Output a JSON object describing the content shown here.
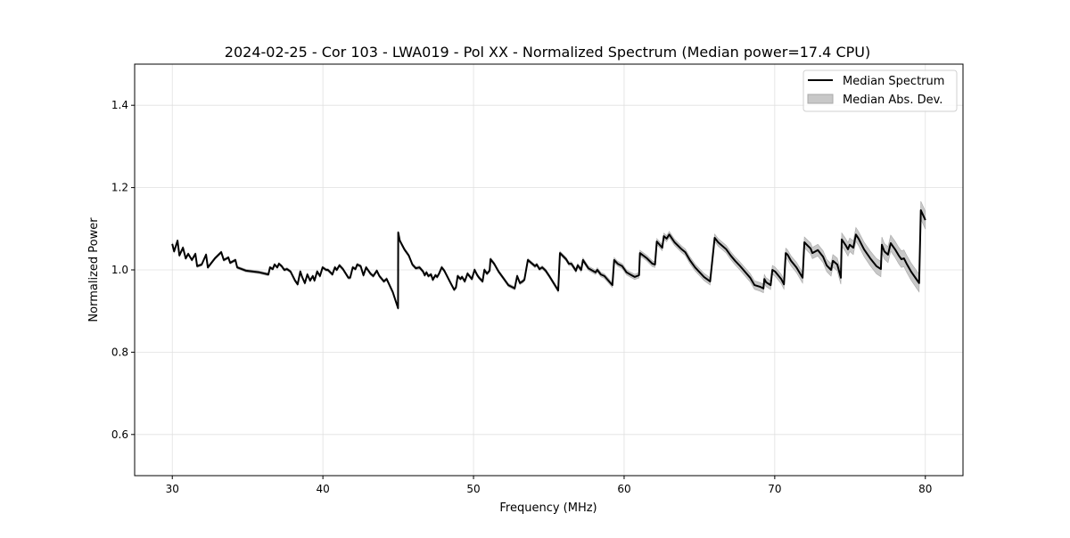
{
  "chart_data": {
    "type": "line",
    "title": "2024-02-25 - Cor 103 - LWA019 - Pol XX - Normalized Spectrum (Median power=17.4 CPU)",
    "xlabel": "Frequency (MHz)",
    "ylabel": "Normalized Power",
    "xlim": [
      27.5,
      82.5
    ],
    "ylim": [
      0.5,
      1.5
    ],
    "xticks": [
      30,
      40,
      50,
      60,
      70,
      80
    ],
    "yticks": [
      0.6,
      0.8,
      1.0,
      1.2,
      1.4
    ],
    "xtick_labels": [
      "30",
      "40",
      "50",
      "60",
      "70",
      "80"
    ],
    "ytick_labels": [
      "0.6",
      "0.8",
      "1.0",
      "1.2",
      "1.4"
    ],
    "grid": true,
    "legend_position": "top-right",
    "legend": [
      "Median Spectrum",
      "Median Abs. Dev."
    ],
    "colors": {
      "line": "#000000",
      "band": "#c8c8c8",
      "band_edge": "#a8a8a8",
      "grid": "#e0e0e0"
    },
    "mad_profile": [
      [
        30,
        0.003
      ],
      [
        55,
        0.004
      ],
      [
        62,
        0.007
      ],
      [
        70,
        0.011
      ],
      [
        80,
        0.022
      ]
    ],
    "series": [
      {
        "name": "Median Spectrum",
        "x": [
          30.0,
          30.12,
          30.35,
          30.47,
          30.71,
          30.89,
          31.06,
          31.3,
          31.53,
          31.65,
          31.95,
          32.24,
          32.36,
          32.83,
          33.25,
          33.42,
          33.72,
          33.84,
          34.19,
          34.31,
          34.9,
          35.79,
          36.38,
          36.49,
          36.67,
          36.79,
          36.97,
          37.08,
          37.26,
          37.44,
          37.61,
          37.85,
          38.15,
          38.32,
          38.5,
          38.62,
          38.8,
          38.97,
          39.15,
          39.33,
          39.44,
          39.62,
          39.8,
          39.98,
          40.21,
          40.33,
          40.63,
          40.8,
          40.92,
          41.1,
          41.33,
          41.69,
          41.81,
          41.98,
          42.16,
          42.28,
          42.51,
          42.69,
          42.87,
          43.16,
          43.34,
          43.58,
          43.75,
          44.05,
          44.23,
          44.64,
          44.99,
          45.0,
          45.11,
          45.41,
          45.7,
          45.94,
          46.17,
          46.41,
          46.65,
          46.76,
          46.88,
          47.0,
          47.18,
          47.3,
          47.47,
          47.59,
          47.71,
          47.89,
          48.06,
          48.48,
          48.71,
          48.83,
          48.95,
          49.13,
          49.24,
          49.42,
          49.6,
          49.78,
          49.89,
          50.07,
          50.25,
          50.37,
          50.6,
          50.72,
          50.9,
          51.07,
          51.13,
          51.37,
          51.66,
          52.02,
          52.31,
          52.73,
          52.9,
          53.08,
          53.26,
          53.38,
          53.61,
          54.08,
          54.2,
          54.38,
          54.56,
          54.79,
          55.03,
          55.62,
          55.74,
          56.15,
          56.33,
          56.5,
          56.8,
          56.92,
          57.15,
          57.27,
          57.63,
          58.1,
          58.22,
          58.45,
          58.69,
          59.22,
          59.34,
          59.57,
          59.87,
          60.16,
          60.4,
          60.7,
          60.99,
          61.05,
          61.52,
          61.88,
          62.05,
          62.17,
          62.53,
          62.64,
          62.82,
          63.0,
          63.35,
          63.82,
          64.06,
          64.36,
          64.71,
          65.3,
          65.71,
          66.01,
          66.24,
          66.78,
          67.07,
          67.37,
          67.66,
          68.37,
          68.66,
          69.02,
          69.25,
          69.31,
          69.43,
          69.73,
          69.84,
          70.02,
          70.43,
          70.61,
          70.73,
          70.85,
          71.08,
          71.44,
          71.85,
          71.97,
          72.21,
          72.38,
          72.5,
          72.86,
          73.21,
          73.45,
          73.74,
          73.86,
          74.15,
          74.39,
          74.45,
          74.69,
          74.86,
          74.98,
          75.22,
          75.39,
          75.57,
          75.93,
          76.34,
          76.75,
          77.05,
          77.11,
          77.28,
          77.52,
          77.7,
          77.99,
          78.23,
          78.41,
          78.58,
          78.76,
          79.05,
          79.47,
          79.59,
          79.7,
          80.0
        ],
        "y": [
          1.063,
          1.045,
          1.071,
          1.035,
          1.054,
          1.028,
          1.039,
          1.024,
          1.039,
          1.009,
          1.013,
          1.037,
          1.006,
          1.028,
          1.043,
          1.024,
          1.03,
          1.017,
          1.024,
          1.006,
          0.998,
          0.994,
          0.989,
          1.006,
          1.002,
          1.013,
          1.006,
          1.015,
          1.009,
          1.0,
          1.002,
          0.996,
          0.974,
          0.965,
          0.996,
          0.983,
          0.968,
          0.989,
          0.974,
          0.985,
          0.974,
          0.996,
          0.985,
          1.006,
          1.0,
          1.0,
          0.989,
          1.006,
          1.0,
          1.011,
          1.002,
          0.981,
          0.981,
          1.006,
          1.002,
          1.013,
          1.009,
          0.987,
          1.006,
          0.991,
          0.985,
          0.998,
          0.985,
          0.972,
          0.978,
          0.946,
          0.907,
          1.091,
          1.071,
          1.05,
          1.035,
          1.013,
          1.004,
          1.006,
          0.996,
          0.987,
          0.994,
          0.985,
          0.989,
          0.976,
          0.987,
          0.983,
          0.991,
          1.006,
          0.998,
          0.968,
          0.952,
          0.957,
          0.985,
          0.978,
          0.983,
          0.972,
          0.991,
          0.983,
          0.978,
          1.0,
          0.987,
          0.981,
          0.972,
          1.0,
          0.991,
          0.998,
          1.026,
          1.015,
          0.996,
          0.978,
          0.963,
          0.955,
          0.985,
          0.968,
          0.972,
          0.976,
          1.024,
          1.009,
          1.013,
          1.002,
          1.006,
          0.998,
          0.985,
          0.95,
          1.041,
          1.026,
          1.015,
          1.015,
          0.998,
          1.011,
          1.0,
          1.024,
          1.004,
          0.994,
          1.0,
          0.989,
          0.985,
          0.963,
          1.024,
          1.015,
          1.009,
          0.994,
          0.989,
          0.983,
          0.987,
          1.041,
          1.028,
          1.015,
          1.013,
          1.069,
          1.054,
          1.082,
          1.076,
          1.086,
          1.067,
          1.05,
          1.043,
          1.024,
          1.006,
          0.983,
          0.972,
          1.078,
          1.067,
          1.05,
          1.035,
          1.022,
          1.011,
          0.981,
          0.963,
          0.959,
          0.955,
          0.978,
          0.97,
          0.963,
          1.0,
          0.996,
          0.978,
          0.965,
          1.041,
          1.037,
          1.022,
          1.006,
          0.981,
          1.067,
          1.058,
          1.052,
          1.041,
          1.048,
          1.032,
          1.011,
          1.0,
          1.022,
          1.013,
          0.981,
          1.074,
          1.061,
          1.05,
          1.061,
          1.054,
          1.086,
          1.076,
          1.05,
          1.028,
          1.009,
          1.002,
          1.061,
          1.045,
          1.037,
          1.065,
          1.05,
          1.035,
          1.026,
          1.028,
          1.015,
          0.996,
          0.974,
          0.968,
          1.145,
          1.121
        ]
      }
    ]
  }
}
